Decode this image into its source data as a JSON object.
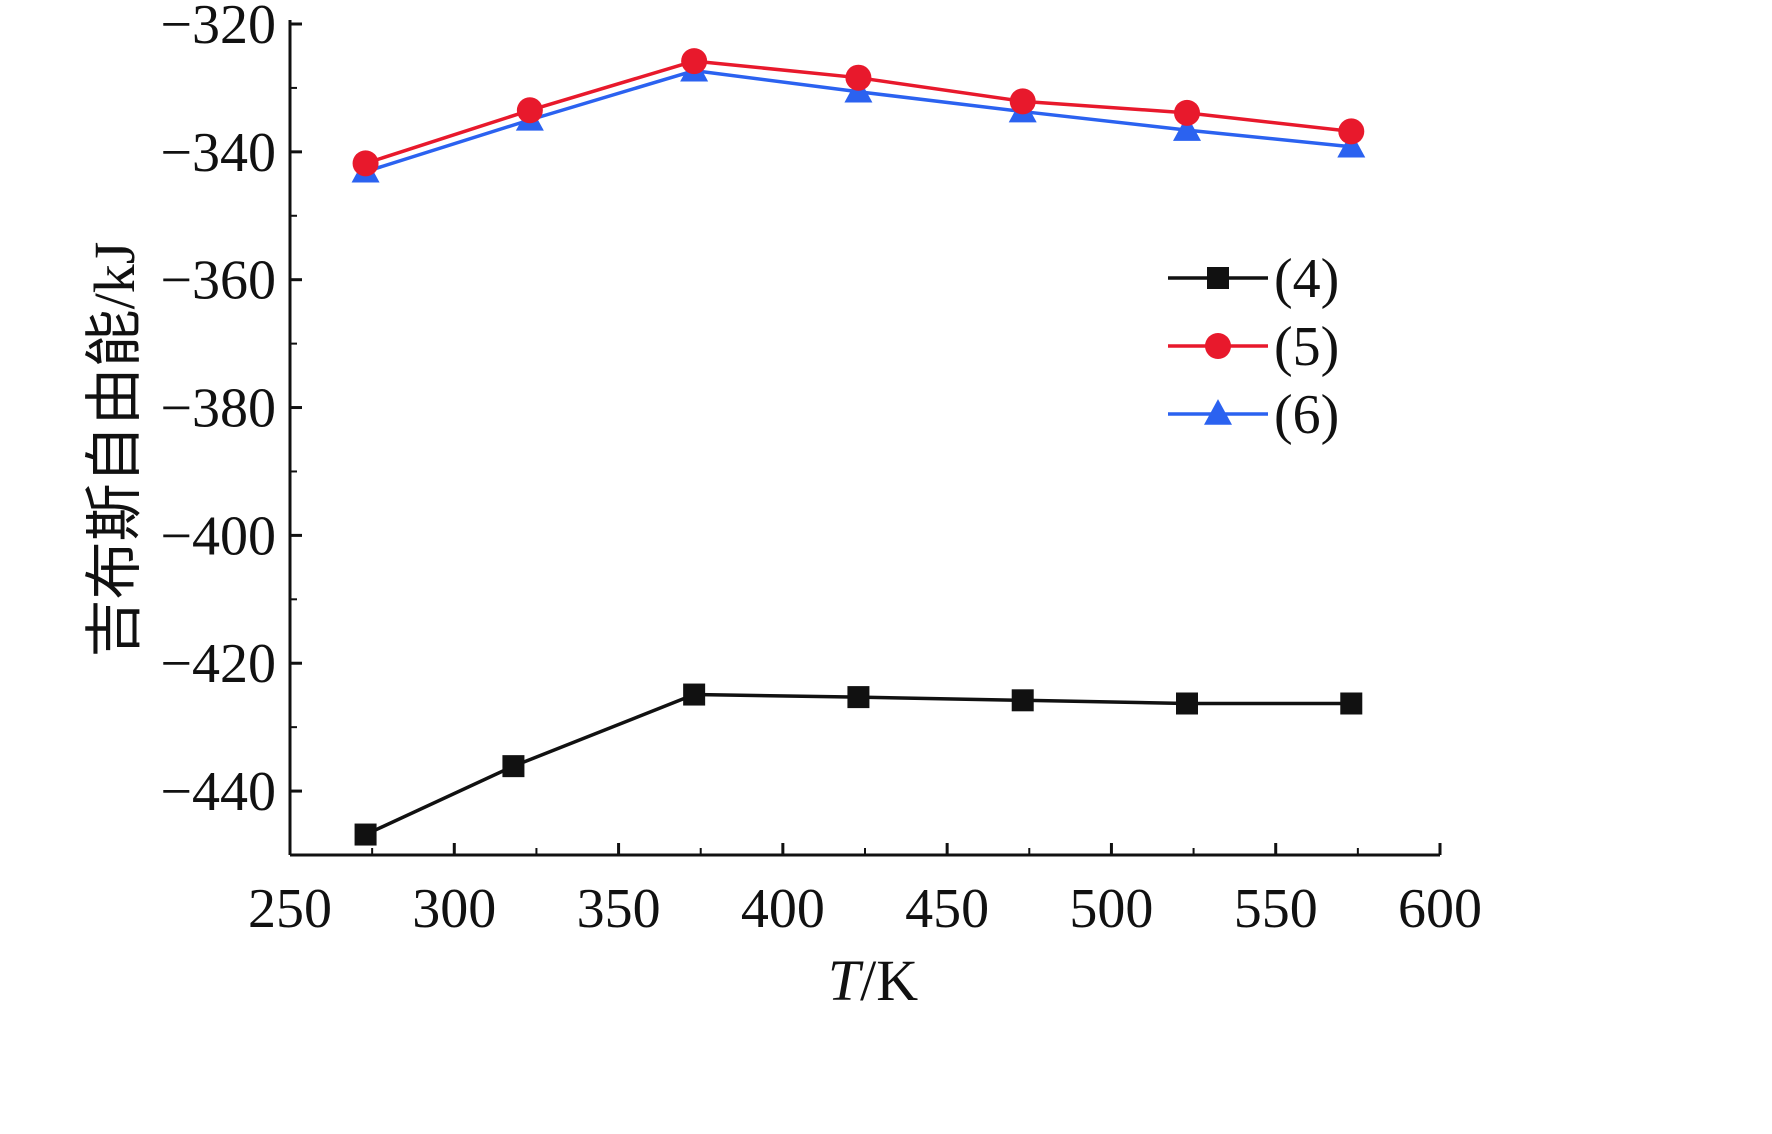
{
  "chart_data": {
    "type": "line",
    "title": "",
    "xlabel": "T/K",
    "xlabel_italic_part": "T",
    "xlabel_rest": "/K",
    "ylabel": "吉布斯自由能/kJ",
    "xlim": [
      250,
      600
    ],
    "ylim": [
      -450,
      -320
    ],
    "xticks": [
      250,
      300,
      350,
      400,
      450,
      500,
      550,
      600
    ],
    "yticks": [
      -320,
      -340,
      -360,
      -380,
      -400,
      -420,
      -440
    ],
    "ytick_labels": [
      "−320",
      "−340",
      "−360",
      "−380",
      "−400",
      "−420",
      "−440"
    ],
    "xtick_labels": [
      "250",
      "300",
      "350",
      "400",
      "450",
      "500",
      "550",
      "600"
    ],
    "grid": false,
    "legend_position": "center-right",
    "series": [
      {
        "name": "(4)",
        "color": "#111111",
        "marker": "square",
        "x": [
          273,
          318,
          373,
          423,
          473,
          523,
          573
        ],
        "y": [
          -446.8,
          -436.1,
          -424.9,
          -425.3,
          -425.8,
          -426.3,
          -426.3
        ]
      },
      {
        "name": "(5)",
        "color": "#e8192c",
        "marker": "circle",
        "x": [
          273,
          323,
          373,
          423,
          473,
          523,
          573
        ],
        "y": [
          -341.8,
          -333.5,
          -325.8,
          -328.4,
          -332.1,
          -333.9,
          -336.8
        ]
      },
      {
        "name": "(6)",
        "color": "#2b62f0",
        "marker": "triangle",
        "x": [
          273,
          323,
          373,
          423,
          473,
          523,
          573
        ],
        "y": [
          -343.1,
          -335.0,
          -327.3,
          -330.6,
          -333.7,
          -336.6,
          -339.2
        ]
      }
    ]
  }
}
